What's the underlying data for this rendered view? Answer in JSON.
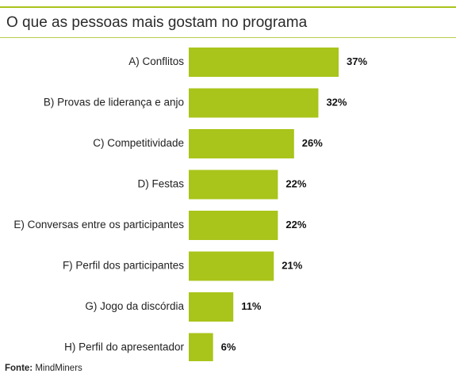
{
  "title": "O que as pessoas mais gostam no programa",
  "source": {
    "label": "Fonte:",
    "value": "MindMiners"
  },
  "colors": {
    "bar": "#a9c41a",
    "rule": "#a9c41a"
  },
  "chart_data": {
    "type": "bar",
    "orientation": "horizontal",
    "title": "O que as pessoas mais gostam no programa",
    "xlabel": "",
    "ylabel": "",
    "grid": false,
    "legend": "none",
    "categories": [
      "A) Conflitos",
      "B) Provas de liderança e anjo",
      "C) Competitividade",
      "D) Festas",
      "E) Conversas entre os participantes",
      "F) Perfil dos participantes",
      "G) Jogo da discórdia",
      "H) Perfil do apresentador"
    ],
    "values": [
      37,
      32,
      26,
      22,
      22,
      21,
      11,
      6
    ],
    "value_labels": [
      "37%",
      "32%",
      "26%",
      "22%",
      "22%",
      "21%",
      "11%",
      "6%"
    ],
    "xlim": [
      0,
      37
    ]
  }
}
